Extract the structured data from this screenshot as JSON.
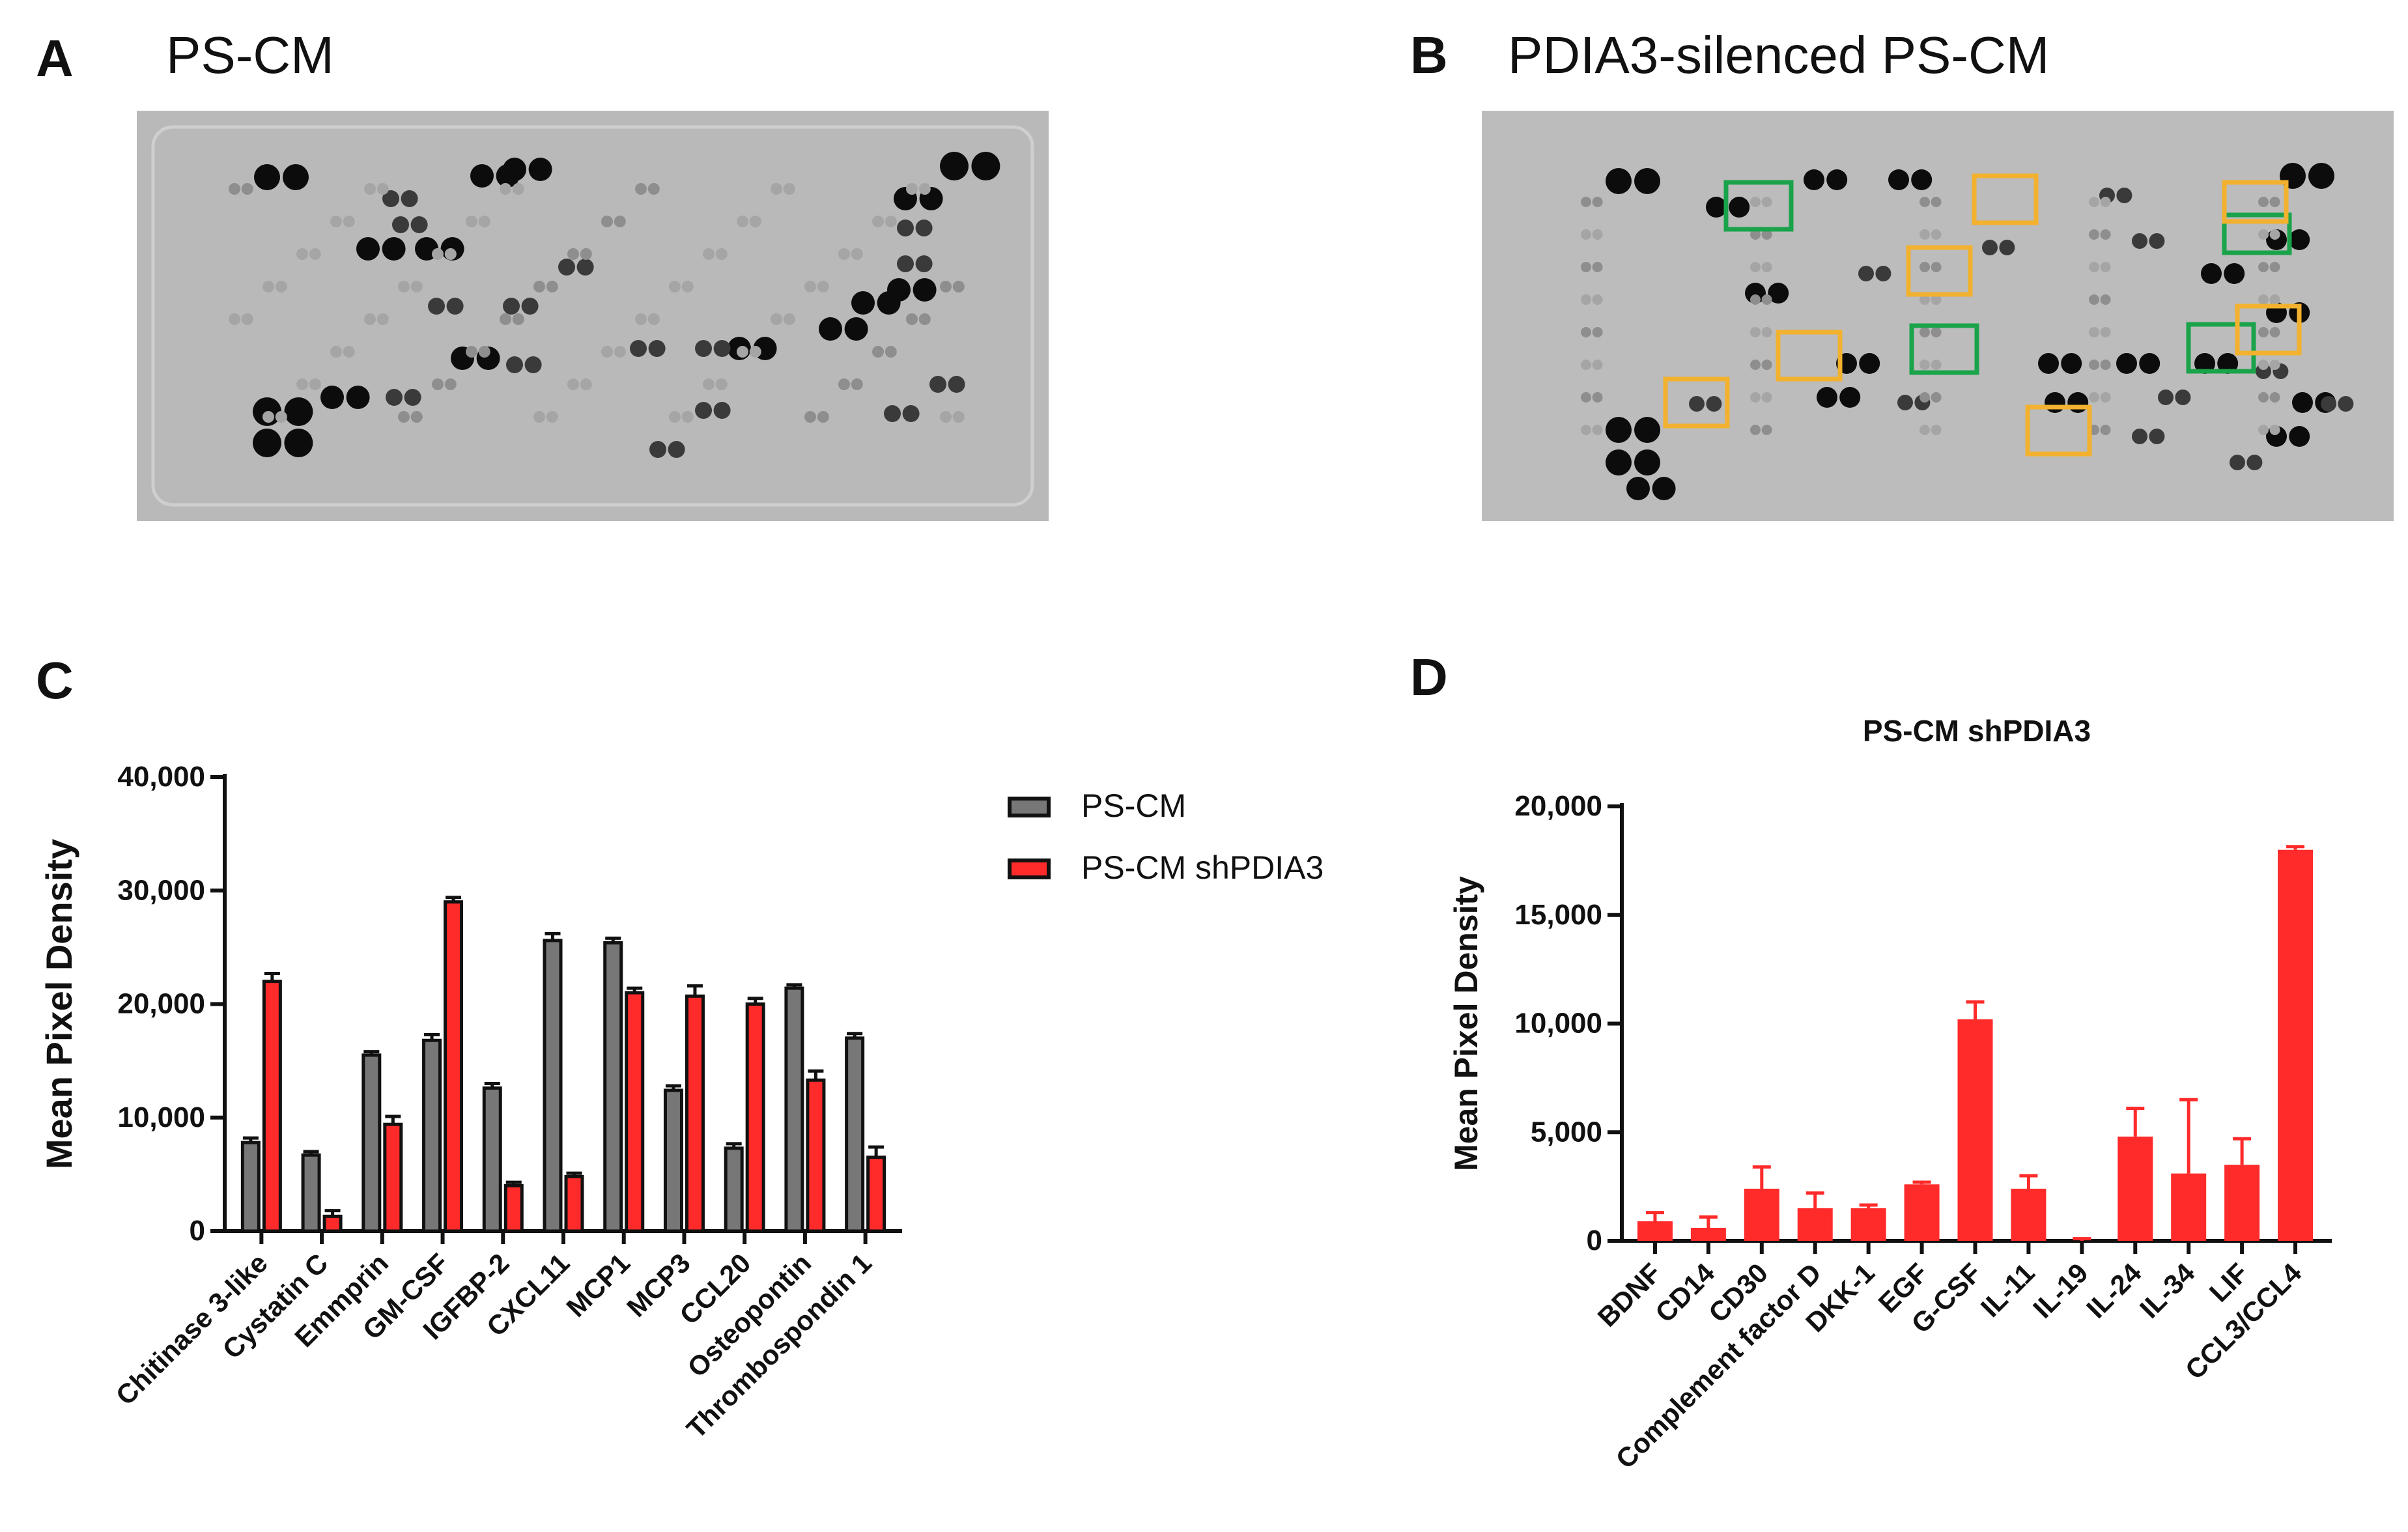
{
  "figure": {
    "panels": {
      "A": {
        "letter": "A",
        "title": "PS-CM"
      },
      "B": {
        "letter": "B",
        "title": "PDIA3-silenced PS-CM"
      },
      "C": {
        "letter": "C"
      },
      "D": {
        "letter": "D"
      }
    }
  },
  "colors": {
    "ps_cm": "#777777",
    "shpdia3": "#ff2a2a",
    "edge": "#111111",
    "highlight_green": "#1aa34a",
    "highlight_yellow": "#f2b12e",
    "membrane": "#b9b9b9"
  },
  "chart_data": [
    {
      "panel": "C",
      "type": "bar",
      "title": "",
      "xlabel": "",
      "ylabel": "Mean Pixel Density",
      "ylim": [
        0,
        40000
      ],
      "yticks": [
        0,
        10000,
        20000,
        30000,
        40000
      ],
      "ytick_labels": [
        "0",
        "10,000",
        "20,000",
        "30,000",
        "40,000"
      ],
      "categories": [
        "Chitinase 3-like",
        "Cystatin C",
        "Emmprin",
        "GM-CSF",
        "IGFBP-2",
        "CXCL11",
        "MCP1",
        "MCP3",
        "CCL20",
        "Osteopontin",
        "Thrombospondin 1"
      ],
      "series": [
        {
          "name": "PS-CM",
          "values": [
            7800,
            6700,
            15500,
            16800,
            12600,
            25600,
            25400,
            12400,
            7300,
            21400,
            17000
          ],
          "errors": [
            400,
            300,
            300,
            500,
            400,
            600,
            400,
            400,
            400,
            300,
            400
          ]
        },
        {
          "name": "PS-CM shPDIA3",
          "values": [
            22000,
            1300,
            9400,
            29000,
            4000,
            4800,
            21000,
            20700,
            20000,
            13300,
            6500
          ],
          "errors": [
            700,
            500,
            700,
            400,
            300,
            300,
            400,
            900,
            500,
            800,
            900
          ]
        }
      ],
      "legend": [
        "PS-CM",
        "PS-CM shPDIA3"
      ],
      "legend_position": "right"
    },
    {
      "panel": "D",
      "type": "bar",
      "title": "PS-CM shPDIA3",
      "xlabel": "",
      "ylabel": "Mean Pixel Density",
      "ylim": [
        0,
        20000
      ],
      "yticks": [
        0,
        5000,
        10000,
        15000,
        20000
      ],
      "ytick_labels": [
        "0",
        "5,000",
        "10,000",
        "15,000",
        "20,000"
      ],
      "categories": [
        "BDNF",
        "CD14",
        "CD30",
        "Complement factor D",
        "DKK-1",
        "EGF",
        "G-CSF",
        "IL-11",
        "IL-19",
        "IL-24",
        "IL-34",
        "LIF",
        "CCL3/CCL4"
      ],
      "series": [
        {
          "name": "PS-CM shPDIA3",
          "values": [
            900,
            600,
            2400,
            1500,
            1500,
            2600,
            10200,
            2400,
            0,
            4800,
            3100,
            3500,
            18000
          ],
          "errors": [
            400,
            500,
            1000,
            700,
            150,
            100,
            800,
            600,
            100,
            1300,
            3400,
            1200,
            150
          ]
        }
      ]
    }
  ]
}
